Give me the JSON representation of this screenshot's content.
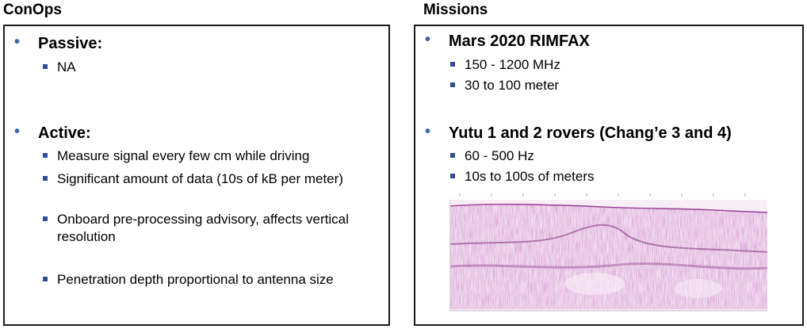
{
  "conops": {
    "title": "ConOps",
    "passive": {
      "heading": "Passive:",
      "items": [
        "NA"
      ]
    },
    "active": {
      "heading": "Active:",
      "items": [
        "Measure signal every few cm while driving",
        "Significant amount of data (10s of kB per meter)",
        "Onboard pre-processing advisory, affects vertical resolution",
        "Penetration depth proportional to antenna size"
      ]
    }
  },
  "missions": {
    "title": "Missions",
    "mars": {
      "heading": "Mars 2020 RIMFAX",
      "items": [
        "150 - 1200 MHz",
        "30 to 100 meter"
      ]
    },
    "yutu": {
      "heading": "Yutu 1 and 2 rovers (Chang’e 3 and 4)",
      "items": [
        "60 - 500 Hz",
        "10s to 100s of meters"
      ]
    }
  },
  "colors": {
    "bullet_l1": "#3a64a8",
    "bullet_l2": "#2e4f94",
    "radargram_tint": "#a0429a"
  }
}
